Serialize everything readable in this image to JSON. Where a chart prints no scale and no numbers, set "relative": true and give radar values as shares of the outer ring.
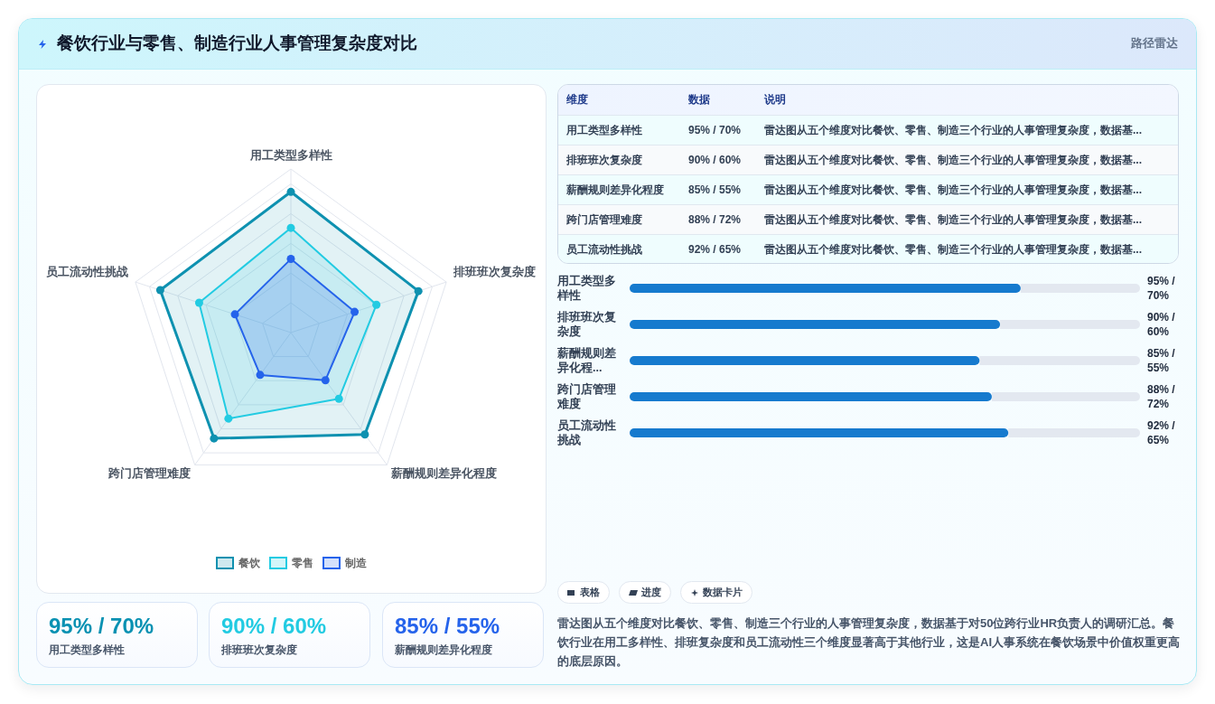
{
  "chart_data": [
    {
      "type": "other",
      "title": "餐饮行业与零售、制造行业人事管理复杂度对比",
      "subtitle": "路径雷达"
    },
    {
      "type": "radar",
      "categories": [
        "用工类型多样性",
        "排班班次复杂度",
        "薪酬规则差异化程度",
        "跨门店管理难度",
        "员工流动性挑战"
      ],
      "relative": true,
      "grid": true,
      "legend": "bottom",
      "marker": "circle",
      "series": [
        {
          "name": "餐饮",
          "color": "#0e91b0",
          "values": [
            0.86,
            0.82,
            0.77,
            0.8,
            0.84
          ]
        },
        {
          "name": "零售",
          "color": "#22cbe2",
          "values": [
            0.64,
            0.55,
            0.5,
            0.65,
            0.59
          ]
        },
        {
          "name": "制造",
          "color": "#2563eb",
          "values": [
            0.45,
            0.41,
            0.36,
            0.32,
            0.36
          ]
        }
      ]
    },
    {
      "type": "other",
      "annotations": [
        "95% / 70%",
        "用工类型多样性",
        "90% / 60%",
        "排班班次复杂度",
        "85% / 55%",
        "薪酬规则差异化程度"
      ],
      "colors": [
        "#0891b2",
        "#22cbe2",
        "#2563eb"
      ]
    },
    {
      "type": "other",
      "annotations": [
        "维度",
        "数据",
        "说明",
        "用工类型多样性",
        "95% / 70%",
        "雷达图从五个维度对比餐饮、零售、制造三个行业的人事管理复杂度，数据基...",
        "排班班次复杂度",
        "90% / 60%",
        "雷达图从五个维度对比餐饮、零售、制造三个行业的人事管理复杂度，数据基...",
        "薪酬规则差异化程度",
        "85% / 55%",
        "雷达图从五个维度对比餐饮、零售、制造三个行业的人事管理复杂度，数据基...",
        "跨门店管理难度",
        "88% / 72%",
        "雷达图从五个维度对比餐饮、零售、制造三个行业的人事管理复杂度，数据基...",
        "员工流动性挑战",
        "92% / 65%",
        "雷达图从五个维度对比餐饮、零售、制造三个行业的人事管理复杂度，数据基..."
      ]
    },
    {
      "type": "bar",
      "orientation": "horizontal",
      "categories": [
        "用工类型多样性",
        "排班班次复杂度",
        "薪酬规则差异化程...",
        "跨门店管理难度",
        "员工流动性挑战"
      ],
      "values": [
        95,
        90,
        85,
        88,
        92
      ],
      "value_labels": [
        "95% / 70%",
        "90% / 60%",
        "85% / 55%",
        "88% / 72%",
        "92% / 65%"
      ],
      "xlim": [
        0,
        124
      ],
      "color": "#167ace"
    },
    {
      "type": "other",
      "annotations": [
        "表格",
        "进度",
        "数据卡片",
        "雷达图从五个维度对比餐饮、零售、制造三个行业的人事管理复杂度，数据基于对50位跨行业HR负责人的调研汇总。餐饮行业在用工多样性、排班复杂度和员工流动性三个维度显著高于其他行业，这是AI人事系统在餐饮场景中价值权重更高的底层原因。"
      ]
    }
  ]
}
